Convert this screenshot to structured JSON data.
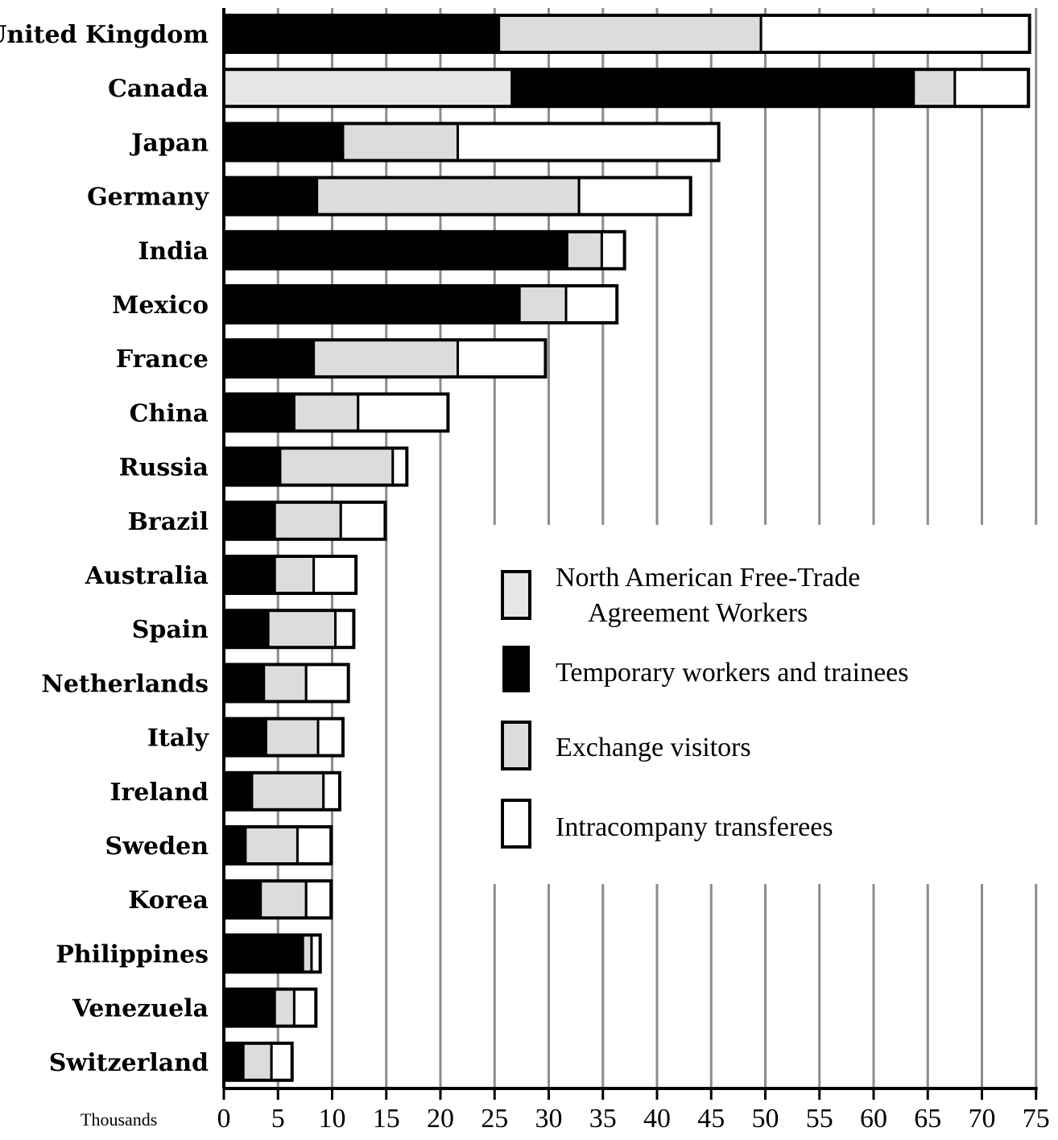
{
  "colors": {
    "nafta": "#e6e6e6",
    "temporary": "#000000",
    "exchange": "#dcdcdc",
    "intracompany": "#ffffff",
    "grid": "#8c8c8c",
    "outline": "#000000"
  },
  "chart_data": {
    "type": "bar",
    "orientation": "horizontal",
    "stacked": true,
    "x_unit_label": "Thousands",
    "xlim": [
      0,
      75
    ],
    "x_ticks": [
      0,
      5,
      10,
      15,
      20,
      25,
      30,
      35,
      40,
      45,
      50,
      55,
      60,
      65,
      70,
      75
    ],
    "grid": true,
    "categories": [
      "United Kingdom",
      "Canada",
      "Japan",
      "Germany",
      "India",
      "Mexico",
      "France",
      "China",
      "Russia",
      "Brazil",
      "Australia",
      "Spain",
      "Netherlands",
      "Italy",
      "Ireland",
      "Sweden",
      "Korea",
      "Philippines",
      "Venezuela",
      "Switzerland"
    ],
    "series": [
      {
        "name": "North American Free-Trade Agreement Workers",
        "key": "nafta",
        "values": [
          0,
          26.6,
          0,
          0,
          0,
          0,
          0,
          0,
          0,
          0,
          0,
          0,
          0,
          0,
          0,
          0,
          0,
          0,
          0,
          0
        ]
      },
      {
        "name": "Temporary workers and trainees",
        "key": "temporary",
        "values": [
          25.4,
          37.1,
          11.0,
          8.6,
          31.7,
          27.3,
          8.3,
          6.5,
          5.2,
          4.7,
          4.7,
          4.1,
          3.7,
          3.9,
          2.6,
          2.0,
          3.4,
          7.3,
          4.7,
          1.8
        ]
      },
      {
        "name": "Exchange visitors",
        "key": "exchange",
        "values": [
          24.2,
          3.8,
          10.6,
          24.2,
          3.2,
          4.3,
          13.3,
          5.9,
          10.4,
          6.1,
          3.6,
          6.2,
          3.9,
          4.8,
          6.6,
          4.8,
          4.2,
          0.8,
          1.8,
          2.6
        ]
      },
      {
        "name": "Intracompany transferees",
        "key": "intracompany",
        "values": [
          24.8,
          6.8,
          24.1,
          10.3,
          2.1,
          4.7,
          8.1,
          8.3,
          1.3,
          4.1,
          3.9,
          1.7,
          3.9,
          2.3,
          1.5,
          3.1,
          2.3,
          0.8,
          2.0,
          1.9
        ]
      }
    ],
    "legend_position": "center-right",
    "legend": [
      {
        "key": "nafta",
        "label_lines": [
          "North American Free-Trade",
          "Agreement Workers"
        ]
      },
      {
        "key": "temporary",
        "label_lines": [
          "Temporary workers and trainees"
        ]
      },
      {
        "key": "exchange",
        "label_lines": [
          "Exchange visitors"
        ]
      },
      {
        "key": "intracompany",
        "label_lines": [
          "Intracompany transferees"
        ]
      }
    ]
  }
}
